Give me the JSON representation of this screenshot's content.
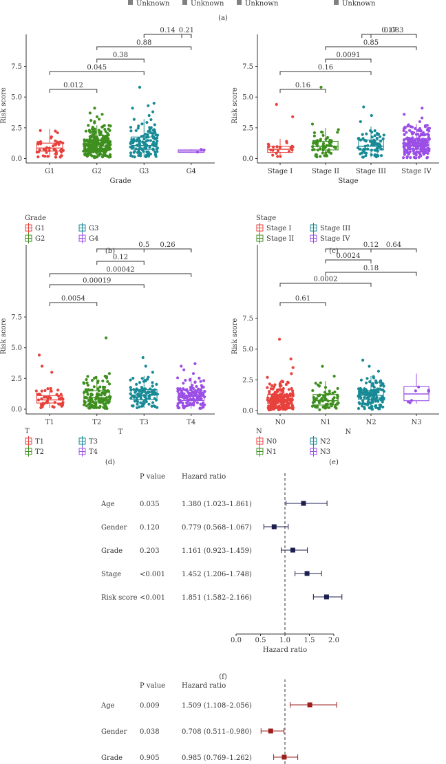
{
  "top_legend": {
    "items": [
      "Unknown",
      "Unknown",
      "Unknown",
      "Unknown"
    ],
    "color": "#808080",
    "panel_label": "(a)"
  },
  "colors": {
    "g1": "#e8413c",
    "g2": "#3e8f1f",
    "g3": "#188a96",
    "g4": "#9b4fe6",
    "forest_blue": "#1b1f4f",
    "forest_red": "#9e1e1e",
    "axis": "#333333",
    "bracket": "#333333"
  },
  "chart_data": [
    {
      "id": "b",
      "type": "boxplot",
      "panel_label": "(b)",
      "xlabel": "Grade",
      "ylabel": "Risk score",
      "yticks": [
        "0.0",
        "2.5",
        "5.0",
        "7.5"
      ],
      "ylim": [
        0,
        9.6
      ],
      "categories": [
        "G1",
        "G2",
        "G3",
        "G4"
      ],
      "boxes": [
        {
          "q1": 0.6,
          "median": 0.85,
          "q3": 1.25,
          "wlo": 0.1,
          "whi": 2.4,
          "n": 50,
          "outliers": []
        },
        {
          "q1": 0.65,
          "median": 1.0,
          "q3": 1.45,
          "wlo": 0.05,
          "whi": 2.7,
          "n": 260,
          "outliers": [
            2.9,
            3.0,
            3.1,
            3.2,
            3.4,
            3.6,
            3.7,
            4.1
          ]
        },
        {
          "q1": 0.75,
          "median": 1.05,
          "q3": 1.75,
          "wlo": 0.1,
          "whi": 3.2,
          "n": 120,
          "outliers": [
            3.5,
            3.8,
            4.1,
            4.3,
            4.5,
            5.8
          ]
        },
        {
          "q1": 0.5,
          "median": 0.6,
          "q3": 0.7,
          "wlo": 0.45,
          "whi": 0.75,
          "n": 3,
          "outliers": []
        }
      ],
      "comparisons": [
        {
          "from": 0,
          "to": 1,
          "label": "0.012"
        },
        {
          "from": 0,
          "to": 2,
          "label": "0.045"
        },
        {
          "from": 1,
          "to": 2,
          "label": "0.38"
        },
        {
          "from": 1,
          "to": 3,
          "label": "0.88"
        },
        {
          "from": 2,
          "to": 3,
          "label": "0.14"
        },
        {
          "from": 2,
          "to": 3,
          "label": "0.21",
          "x_from": 3.3
        }
      ],
      "legend_title": "Grade",
      "legend": [
        "G1",
        "G3",
        "G2",
        "G4"
      ]
    },
    {
      "id": "c",
      "type": "boxplot",
      "panel_label": "(c)",
      "xlabel": "Stage",
      "ylabel": "Risk score",
      "yticks": [
        "0.0",
        "2.5",
        "5.0",
        "7.5"
      ],
      "ylim": [
        0,
        9.6
      ],
      "categories": [
        "Stage I",
        "Stage II",
        "Stage III",
        "Stage IV"
      ],
      "boxes": [
        {
          "q1": 0.5,
          "median": 0.75,
          "q3": 1.0,
          "wlo": 0.1,
          "whi": 1.6,
          "n": 20,
          "outliers": [
            3.4,
            4.4
          ]
        },
        {
          "q1": 0.7,
          "median": 1.0,
          "q3": 1.4,
          "wlo": 0.1,
          "whi": 2.5,
          "n": 60,
          "outliers": [
            2.8,
            5.8
          ]
        },
        {
          "q1": 0.7,
          "median": 1.0,
          "q3": 1.5,
          "wlo": 0.1,
          "whi": 2.6,
          "n": 70,
          "outliers": [
            3.0,
            3.5,
            4.2
          ]
        },
        {
          "q1": 0.75,
          "median": 1.05,
          "q3": 1.6,
          "wlo": 0.05,
          "whi": 2.8,
          "n": 200,
          "outliers": [
            3.0,
            3.3,
            3.6,
            4.1
          ]
        }
      ],
      "comparisons": [
        {
          "from": 0,
          "to": 1,
          "label": "0.16"
        },
        {
          "from": 0,
          "to": 2,
          "label": "0.16"
        },
        {
          "from": 1,
          "to": 2,
          "label": "0.0091"
        },
        {
          "from": 1,
          "to": 3,
          "label": "0.85"
        },
        {
          "from": 2,
          "to": 3,
          "label": "0.083"
        },
        {
          "from": 2,
          "to": 3,
          "label": "0.17",
          "x_from": 2.3
        }
      ],
      "legend_title": "Stage",
      "legend": [
        "Stage I",
        "Stage III",
        "Stage II",
        "Stage IV"
      ]
    },
    {
      "id": "d",
      "type": "boxplot",
      "panel_label": "(d)",
      "xlabel": "T",
      "ylabel": "Risk score",
      "yticks": [
        "0.0",
        "2.5",
        "5.0",
        "7.5"
      ],
      "ylim": [
        0,
        9.6
      ],
      "categories": [
        "T1",
        "T2",
        "T3",
        "T4"
      ],
      "boxes": [
        {
          "q1": 0.5,
          "median": 0.75,
          "q3": 1.1,
          "wlo": 0.1,
          "whi": 1.8,
          "n": 45,
          "outliers": [
            3.0,
            3.5,
            4.4
          ]
        },
        {
          "q1": 0.6,
          "median": 0.95,
          "q3": 1.5,
          "wlo": 0.05,
          "whi": 2.7,
          "n": 130,
          "outliers": [
            2.9,
            5.8
          ]
        },
        {
          "q1": 0.8,
          "median": 1.15,
          "q3": 1.6,
          "wlo": 0.1,
          "whi": 2.7,
          "n": 100,
          "outliers": [
            3.0,
            3.5,
            4.2
          ]
        },
        {
          "q1": 0.7,
          "median": 1.05,
          "q3": 1.5,
          "wlo": 0.05,
          "whi": 2.6,
          "n": 140,
          "outliers": [
            2.9,
            3.2,
            3.5,
            3.7
          ]
        }
      ],
      "comparisons": [
        {
          "from": 0,
          "to": 1,
          "label": "0.0054"
        },
        {
          "from": 0,
          "to": 2,
          "label": "0.00019"
        },
        {
          "from": 0,
          "to": 3,
          "label": "0.00042"
        },
        {
          "from": 1,
          "to": 2,
          "label": "0.12"
        },
        {
          "from": 1,
          "to": 3,
          "label": "0.5"
        },
        {
          "from": 2,
          "to": 3,
          "label": "0.26"
        }
      ],
      "legend_title": "T",
      "legend": [
        "T1",
        "T3",
        "T2",
        "T4"
      ]
    },
    {
      "id": "e",
      "type": "boxplot",
      "panel_label": "(e)",
      "xlabel": "N",
      "ylabel": "Risk score",
      "yticks": [
        "0.0",
        "2.5",
        "5.0",
        "7.5"
      ],
      "ylim": [
        0,
        9.6
      ],
      "categories": [
        "N0",
        "N1",
        "N2",
        "N3"
      ],
      "boxes": [
        {
          "q1": 0.55,
          "median": 0.85,
          "q3": 1.3,
          "wlo": 0.05,
          "whi": 2.4,
          "n": 180,
          "outliers": [
            2.7,
            3.0,
            3.5,
            4.2,
            5.8
          ]
        },
        {
          "q1": 0.45,
          "median": 0.8,
          "q3": 1.3,
          "wlo": 0.05,
          "whi": 2.4,
          "n": 70,
          "outliers": [
            2.8,
            3.6
          ]
        },
        {
          "q1": 0.9,
          "median": 1.25,
          "q3": 1.65,
          "wlo": 0.1,
          "whi": 2.8,
          "n": 140,
          "outliers": [
            3.2,
            3.6,
            4.1
          ]
        },
        {
          "q1": 0.8,
          "median": 1.35,
          "q3": 1.95,
          "wlo": 0.55,
          "whi": 3.0,
          "n": 7,
          "outliers": []
        }
      ],
      "comparisons": [
        {
          "from": 0,
          "to": 1,
          "label": "0.61"
        },
        {
          "from": 0,
          "to": 2,
          "label": "0.0002"
        },
        {
          "from": 1,
          "to": 3,
          "label": "0.18"
        },
        {
          "from": 1,
          "to": 2,
          "label": "0.0024"
        },
        {
          "from": 1,
          "to": 3,
          "label": "0.12"
        },
        {
          "from": 2,
          "to": 3,
          "label": "0.64"
        }
      ],
      "legend_title": "N",
      "legend": [
        "N0",
        "N2",
        "N1",
        "N3"
      ]
    },
    {
      "id": "f",
      "type": "forest",
      "panel_label": "(f)",
      "header_p": "P value",
      "header_hr": "Hazard ratio",
      "xlabel": "Hazard ratio",
      "xticks": [
        "0.0",
        "0.5",
        "1.0",
        "1.5",
        "2.0"
      ],
      "xlim": [
        0,
        2.25
      ],
      "rows": [
        {
          "name": "Age",
          "p": "0.035",
          "hr_text": "1.380 (1.023–1.861)",
          "hr": 1.38,
          "lo": 1.023,
          "hi": 1.861
        },
        {
          "name": "Gender",
          "p": "0.120",
          "hr_text": "0.779 (0.568–1.067)",
          "hr": 0.779,
          "lo": 0.568,
          "hi": 1.067
        },
        {
          "name": "Grade",
          "p": "0.203",
          "hr_text": "1.161 (0.923–1.459)",
          "hr": 1.161,
          "lo": 0.923,
          "hi": 1.459
        },
        {
          "name": "Stage",
          "p": "<0.001",
          "hr_text": "1.452 (1.206–1.748)",
          "hr": 1.452,
          "lo": 1.206,
          "hi": 1.748
        },
        {
          "name": "Risk score",
          "p": "<0.001",
          "hr_text": "1.851 (1.582–2.166)",
          "hr": 1.851,
          "lo": 1.582,
          "hi": 2.166
        }
      ]
    },
    {
      "id": "g",
      "type": "forest",
      "panel_label": "",
      "header_p": "P value",
      "header_hr": "Hazard ratio",
      "xlim": [
        0,
        2.25
      ],
      "rows": [
        {
          "name": "Age",
          "p": "0.009",
          "hr_text": "1.509 (1.108–2.056)",
          "hr": 1.509,
          "lo": 1.108,
          "hi": 2.056
        },
        {
          "name": "Gender",
          "p": "0.038",
          "hr_text": "0.708 (0.511–0.980)",
          "hr": 0.708,
          "lo": 0.511,
          "hi": 0.98
        },
        {
          "name": "Grade",
          "p": "0.905",
          "hr_text": "0.985 (0.769–1.262)",
          "hr": 0.985,
          "lo": 0.769,
          "hi": 1.262
        }
      ]
    }
  ]
}
